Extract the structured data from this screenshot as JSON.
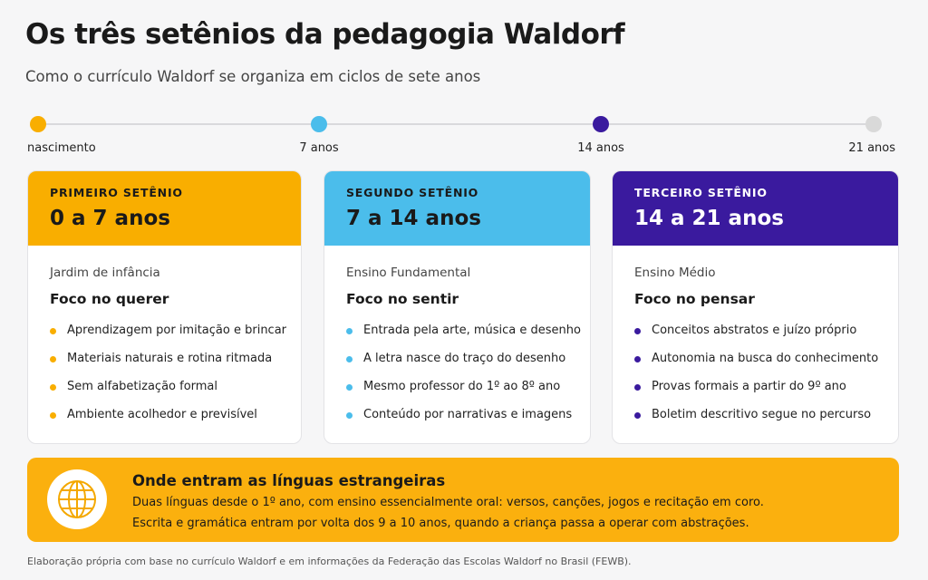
{
  "header": {
    "title": "Os três setênios da pedagogia Waldorf",
    "subtitle": "Como o currículo Waldorf se organiza em ciclos de sete anos"
  },
  "timeline": [
    "nascimento",
    "7 anos",
    "14 anos",
    "21 anos"
  ],
  "cards": [
    {
      "label": "PRIMEIRO SETÊNIO",
      "range": "0 a 7 anos",
      "stage": "Jardim de infância",
      "focus": "Foco no querer",
      "items": [
        "Aprendizagem por imitação e brincar",
        "Materiais naturais e rotina ritmada",
        "Sem alfabetização formal",
        "Ambiente acolhedor e previsível"
      ]
    },
    {
      "label": "SEGUNDO SETÊNIO",
      "range": "7 a 14 anos",
      "stage": "Ensino Fundamental",
      "focus": "Foco no sentir",
      "items": [
        "Entrada pela arte, música e desenho",
        "A letra nasce do traço do desenho",
        "Mesmo professor do 1º ao 8º ano",
        "Conteúdo por narrativas e imagens"
      ]
    },
    {
      "label": "TERCEIRO SETÊNIO",
      "range": "14 a 21 anos",
      "stage": "Ensino Médio",
      "focus": "Foco no pensar",
      "items": [
        "Conceitos abstratos e juízo próprio",
        "Autonomia na busca do conhecimento",
        "Provas formais a partir do 9º ano",
        "Boletim descritivo segue no percurso"
      ]
    }
  ],
  "callout": {
    "title": "Onde entram as línguas estrangeiras",
    "lines": [
      "Duas línguas desde o 1º ano, com ensino essencialmente oral: versos, canções, jogos e recitação em coro.",
      "Escrita e gramática entram por volta dos 9 a 10 anos, quando a criança passa a operar com abstrações."
    ]
  },
  "footnote": "Elaboração própria com base no currículo Waldorf e em informações da Federação das Escolas Waldorf no Brasil (FEWB)."
}
